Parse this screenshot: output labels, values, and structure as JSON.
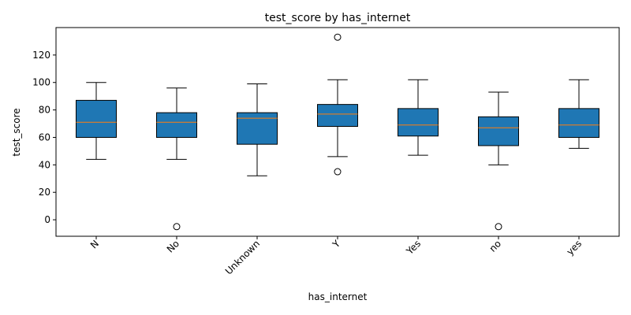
{
  "chart_data": {
    "type": "box",
    "title": "test_score by has_internet",
    "xlabel": "has_internet",
    "ylabel": "test_score",
    "ylim": [
      -12,
      140
    ],
    "yticks": [
      0,
      20,
      40,
      60,
      80,
      100,
      120
    ],
    "grid": false,
    "categories": [
      "N",
      "No",
      "Unknown",
      "Y",
      "Yes",
      "no",
      "yes"
    ],
    "boxes": [
      {
        "category": "N",
        "whisker_low": 44,
        "q1": 60,
        "median": 71,
        "q3": 87,
        "whisker_high": 100,
        "outliers": []
      },
      {
        "category": "No",
        "whisker_low": 44,
        "q1": 60,
        "median": 71,
        "q3": 78,
        "whisker_high": 96,
        "outliers": [
          -5
        ]
      },
      {
        "category": "Unknown",
        "whisker_low": 32,
        "q1": 55,
        "median": 74,
        "q3": 78,
        "whisker_high": 99,
        "outliers": []
      },
      {
        "category": "Y",
        "whisker_low": 46,
        "q1": 68,
        "median": 77,
        "q3": 84,
        "whisker_high": 102,
        "outliers": [
          35,
          133
        ]
      },
      {
        "category": "Yes",
        "whisker_low": 47,
        "q1": 61,
        "median": 69,
        "q3": 81,
        "whisker_high": 102,
        "outliers": []
      },
      {
        "category": "no",
        "whisker_low": 40,
        "q1": 54,
        "median": 67,
        "q3": 75,
        "whisker_high": 93,
        "outliers": [
          -5
        ]
      },
      {
        "category": "yes",
        "whisker_low": 52,
        "q1": 60,
        "median": 69,
        "q3": 81,
        "whisker_high": 102,
        "outliers": []
      }
    ],
    "colors": {
      "box_fill": "#1f77b4",
      "median": "#ff7f0e",
      "edge": "#000000"
    }
  }
}
